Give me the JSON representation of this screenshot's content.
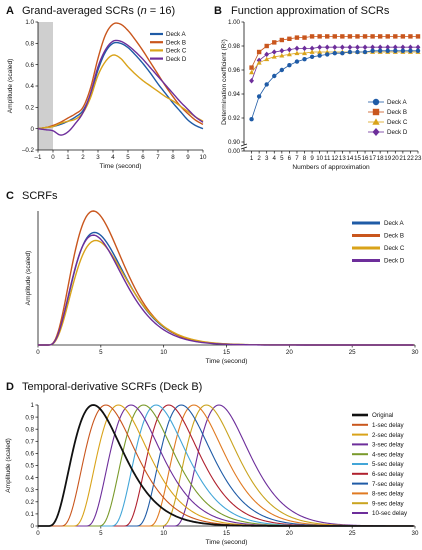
{
  "colors": {
    "deck_a": "#1f5ba6",
    "deck_b": "#c9561d",
    "deck_c": "#d9a31a",
    "deck_d": "#6d2e9b",
    "delays": [
      "#c9561d",
      "#d9a31a",
      "#6d2e9b",
      "#7a9a2b",
      "#43a6d8",
      "#b0212e",
      "#1f5ba6",
      "#e07a22",
      "#c9a41f",
      "#6d2e9b"
    ]
  },
  "chart_data": [
    {
      "panel": "A",
      "type": "line",
      "title": "Grand-averaged SCRs (n = 16)",
      "title_main": "Grand-averaged SCRs (",
      "title_italic": "n",
      "title_tail": " = 16)",
      "xlabel": "Time (second)",
      "ylabel": "Amplitude (scaled)",
      "xlim": [
        -1,
        10
      ],
      "ylim": [
        -0.2,
        1.0
      ],
      "xticks": [
        -1,
        0,
        1,
        2,
        3,
        4,
        5,
        6,
        7,
        8,
        9,
        10
      ],
      "yticks": [
        -0.2,
        0,
        0.2,
        0.4,
        0.6,
        0.8,
        1.0
      ],
      "ytick_labels": [
        "–0.2",
        "0",
        "0.2",
        "0.4",
        "0.6",
        "0.8",
        "1.0"
      ],
      "xtick_labels": [
        "–1",
        "0",
        "1",
        "2",
        "3",
        "4",
        "5",
        "6",
        "7",
        "8",
        "9",
        "10"
      ],
      "shaded_region": [
        -1,
        0
      ],
      "legend": "top-right",
      "series": [
        {
          "name": "Deck A",
          "x": [
            -1,
            -0.5,
            0,
            0.5,
            1,
            1.5,
            2,
            2.5,
            3,
            3.5,
            4,
            4.5,
            5,
            5.5,
            6,
            6.5,
            7,
            7.5,
            8,
            8.5,
            9,
            9.5,
            10
          ],
          "y": [
            0,
            0.01,
            0.02,
            0.04,
            0.07,
            0.11,
            0.17,
            0.32,
            0.55,
            0.72,
            0.8,
            0.8,
            0.76,
            0.69,
            0.61,
            0.52,
            0.42,
            0.33,
            0.24,
            0.16,
            0.08,
            0.03,
            0.0
          ]
        },
        {
          "name": "Deck B",
          "x": [
            -1,
            -0.5,
            0,
            0.5,
            1,
            1.5,
            2,
            2.5,
            3,
            3.5,
            4,
            4.5,
            5,
            5.5,
            6,
            6.5,
            7,
            7.5,
            8,
            8.5,
            9,
            9.5,
            10
          ],
          "y": [
            0,
            0.01,
            0.03,
            0.06,
            0.1,
            0.14,
            0.2,
            0.38,
            0.66,
            0.88,
            0.98,
            0.98,
            0.92,
            0.83,
            0.73,
            0.62,
            0.51,
            0.4,
            0.3,
            0.21,
            0.14,
            0.08,
            0.04
          ]
        },
        {
          "name": "Deck C",
          "x": [
            -1,
            -0.5,
            0,
            0.5,
            1,
            1.5,
            2,
            2.5,
            3,
            3.5,
            4,
            4.5,
            5,
            5.5,
            6,
            6.5,
            7,
            7.5,
            8,
            8.5,
            9,
            9.5,
            10
          ],
          "y": [
            0,
            0.01,
            0.02,
            0.05,
            0.07,
            0.09,
            0.15,
            0.29,
            0.5,
            0.63,
            0.69,
            0.66,
            0.58,
            0.51,
            0.45,
            0.4,
            0.35,
            0.3,
            0.26,
            0.21,
            0.16,
            0.11,
            0.07
          ]
        },
        {
          "name": "Deck D",
          "x": [
            -1,
            -0.5,
            0,
            0.5,
            1,
            1.5,
            2,
            2.5,
            3,
            3.5,
            4,
            4.5,
            5,
            5.5,
            6,
            6.5,
            7,
            7.5,
            8,
            8.5,
            9,
            9.5,
            10
          ],
          "y": [
            0,
            -0.01,
            -0.02,
            -0.06,
            -0.03,
            0.05,
            0.15,
            0.33,
            0.58,
            0.74,
            0.82,
            0.82,
            0.78,
            0.72,
            0.65,
            0.57,
            0.49,
            0.41,
            0.33,
            0.25,
            0.18,
            0.11,
            0.06
          ]
        }
      ]
    },
    {
      "panel": "B",
      "type": "line",
      "title": "Function approximation of SCRs",
      "xlabel": "Numbers of approximation",
      "ylabel": "Determination coefficient (R²)",
      "xlim": [
        0,
        23
      ],
      "ylim": [
        0.9,
        1.0
      ],
      "xticks": [
        1,
        2,
        3,
        4,
        5,
        6,
        7,
        8,
        9,
        10,
        11,
        12,
        13,
        14,
        15,
        16,
        17,
        18,
        19,
        20,
        21,
        22,
        23
      ],
      "yticks": [
        0.9,
        0.92,
        0.94,
        0.96,
        0.98,
        1.0
      ],
      "ytick_labels": [
        "0.90",
        "0.92",
        "0.94",
        "0.96",
        "0.98",
        "1.00"
      ],
      "extra_ytick_label": "0.00",
      "legend": "bottom-right",
      "series": [
        {
          "name": "Deck A",
          "marker": "circle",
          "x": [
            1,
            2,
            3,
            4,
            5,
            6,
            7,
            8,
            9,
            10,
            11,
            12,
            13,
            14,
            15,
            16,
            17,
            18,
            19,
            20,
            21,
            22,
            23
          ],
          "y": [
            0.919,
            0.938,
            0.948,
            0.955,
            0.96,
            0.964,
            0.967,
            0.969,
            0.971,
            0.972,
            0.973,
            0.974,
            0.974,
            0.975,
            0.975,
            0.975,
            0.976,
            0.976,
            0.976,
            0.976,
            0.976,
            0.976,
            0.976
          ]
        },
        {
          "name": "Deck B",
          "marker": "square",
          "x": [
            1,
            2,
            3,
            4,
            5,
            6,
            7,
            8,
            9,
            10,
            11,
            12,
            13,
            14,
            15,
            16,
            17,
            18,
            19,
            20,
            21,
            22,
            23
          ],
          "y": [
            0.962,
            0.975,
            0.98,
            0.983,
            0.985,
            0.986,
            0.987,
            0.987,
            0.988,
            0.988,
            0.988,
            0.988,
            0.988,
            0.988,
            0.988,
            0.988,
            0.988,
            0.988,
            0.988,
            0.988,
            0.988,
            0.988,
            0.988
          ]
        },
        {
          "name": "Deck C",
          "marker": "triangle",
          "x": [
            1,
            2,
            3,
            4,
            5,
            6,
            7,
            8,
            9,
            10,
            11,
            12,
            13,
            14,
            15,
            16,
            17,
            18,
            19,
            20,
            21,
            22,
            23
          ],
          "y": [
            0.958,
            0.966,
            0.969,
            0.971,
            0.972,
            0.973,
            0.974,
            0.974,
            0.975,
            0.975,
            0.975,
            0.975,
            0.975,
            0.975,
            0.975,
            0.975,
            0.975,
            0.975,
            0.975,
            0.975,
            0.975,
            0.975,
            0.975
          ]
        },
        {
          "name": "Deck D",
          "marker": "diamond",
          "x": [
            1,
            2,
            3,
            4,
            5,
            6,
            7,
            8,
            9,
            10,
            11,
            12,
            13,
            14,
            15,
            16,
            17,
            18,
            19,
            20,
            21,
            22,
            23
          ],
          "y": [
            0.951,
            0.968,
            0.973,
            0.975,
            0.976,
            0.977,
            0.978,
            0.978,
            0.978,
            0.979,
            0.979,
            0.979,
            0.979,
            0.979,
            0.979,
            0.979,
            0.979,
            0.979,
            0.979,
            0.979,
            0.979,
            0.979,
            0.979
          ]
        }
      ]
    },
    {
      "panel": "C",
      "type": "line",
      "title": "SCRFs",
      "xlabel": "Time (second)",
      "ylabel": "Amplitude (scaled)",
      "xlim": [
        0,
        30
      ],
      "ylim": [
        0,
        1.0
      ],
      "xticks": [
        0,
        5,
        10,
        15,
        20,
        25,
        30
      ],
      "legend": "top-right",
      "series": [
        {
          "name": "Deck A",
          "peak": 0.84,
          "tpeak": 4.5
        },
        {
          "name": "Deck B",
          "peak": 1.0,
          "tpeak": 4.4
        },
        {
          "name": "Deck C",
          "peak": 0.78,
          "tpeak": 4.6
        },
        {
          "name": "Deck D",
          "peak": 0.82,
          "tpeak": 4.4
        }
      ]
    },
    {
      "panel": "D",
      "type": "line",
      "title": "Temporal-derivative SCRFs (Deck B)",
      "xlabel": "Time (second)",
      "ylabel": "Amplitude (scaled)",
      "xlim": [
        0,
        30
      ],
      "ylim": [
        0,
        1.0
      ],
      "xticks": [
        0,
        5,
        10,
        15,
        20,
        25,
        30
      ],
      "yticks": [
        0,
        0.1,
        0.2,
        0.3,
        0.4,
        0.5,
        0.6,
        0.7,
        0.8,
        0.9,
        1.0
      ],
      "legend": "right",
      "series": [
        {
          "name": "Original",
          "delay": 0
        },
        {
          "name": "1-sec delay",
          "delay": 1
        },
        {
          "name": "2-sec delay",
          "delay": 2
        },
        {
          "name": "3-sec delay",
          "delay": 3
        },
        {
          "name": "4-sec delay",
          "delay": 4
        },
        {
          "name": "5-sec delay",
          "delay": 5
        },
        {
          "name": "6-sec delay",
          "delay": 6
        },
        {
          "name": "7-sec delay",
          "delay": 7
        },
        {
          "name": "8-sec delay",
          "delay": 8
        },
        {
          "name": "9-sec delay",
          "delay": 9
        },
        {
          "name": "10-sec delay",
          "delay": 10
        }
      ]
    }
  ],
  "panel_letters": [
    "A",
    "B",
    "C",
    "D"
  ]
}
